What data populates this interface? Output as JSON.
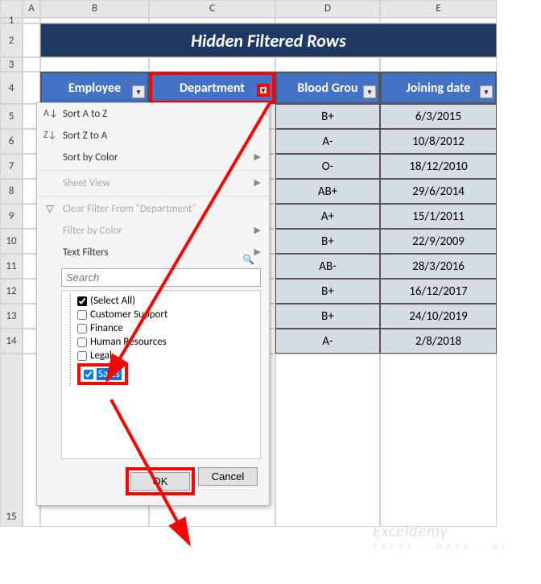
{
  "columns": [
    "",
    "A",
    "B",
    "C",
    "D",
    "E"
  ],
  "title": "Hidden Filtered Rows",
  "headers": {
    "employee": "Employee",
    "department": "Department",
    "blood": "Blood Grou",
    "joining": "Joining date"
  },
  "rows": [
    {
      "blood": "B+",
      "date": "6/3/2015"
    },
    {
      "blood": "A-",
      "date": "10/8/2012"
    },
    {
      "blood": "O-",
      "date": "18/12/2010"
    },
    {
      "blood": "AB+",
      "date": "29/6/2014"
    },
    {
      "blood": "A+",
      "date": "15/1/2011"
    },
    {
      "blood": "B+",
      "date": "22/9/2009"
    },
    {
      "blood": "AB-",
      "date": "28/3/2016"
    },
    {
      "blood": "B+",
      "date": "16/12/2017"
    },
    {
      "blood": "B+",
      "date": "24/10/2019"
    },
    {
      "blood": "A-",
      "date": "2/8/2018"
    }
  ],
  "row_numbers": [
    "1",
    "2",
    "3",
    "4",
    "5",
    "6",
    "7",
    "8",
    "9",
    "10",
    "11",
    "12",
    "13",
    "14",
    "15"
  ],
  "dropdown": {
    "sort_az": "Sort A to Z",
    "sort_za": "Sort Z to A",
    "sort_color": "Sort by Color",
    "sheet_view": "Sheet View",
    "clear_filter": "Clear Filter From \"Department\"",
    "filter_color": "Filter by Color",
    "text_filters": "Text Filters",
    "search_placeholder": "Search",
    "items": {
      "select_all": "(Select All)",
      "customer_support": "Customer Support",
      "finance": "Finance",
      "hr": "Human Resources",
      "legal": "Legal",
      "sales": "Sales"
    },
    "ok": "OK",
    "cancel": "Cancel"
  },
  "watermark": {
    "main": "Exceldemy",
    "sub": "EXCEL · DATA · BI"
  },
  "colors": {
    "title_bg": "#203864",
    "header_bg": "#4472c4",
    "data_bg": "#d6dce5",
    "highlight": "#ff0000",
    "selection": "#0078d7"
  }
}
